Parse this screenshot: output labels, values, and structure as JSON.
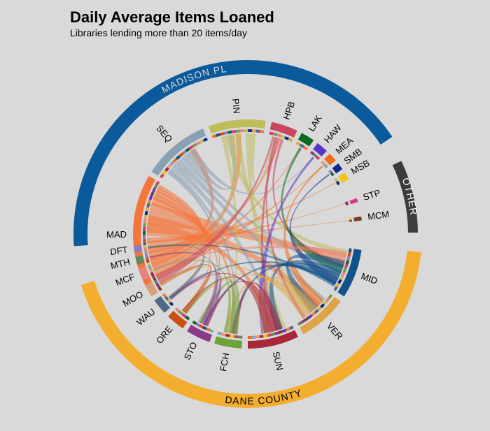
{
  "chart_data": {
    "type": "chord",
    "title": "Daily Average Items Loaned",
    "subtitle": "Libraries lending more than 20 items/day",
    "groups": [
      {
        "name": "MADISON PL",
        "color": "#0a5a9c",
        "text_color": "#d9d9d9",
        "nodes": [
          "MAD",
          "SEQ",
          "PIN",
          "HPB",
          "LAK",
          "HAW",
          "MEA",
          "SMB",
          "MSB"
        ]
      },
      {
        "name": "OTHER",
        "color": "#3c3c3c",
        "text_color": "#ffffff",
        "nodes": [
          "STP",
          "MCM"
        ]
      },
      {
        "name": "DANE COUNTY",
        "color": "#f4ae2f",
        "text_color": "#000000",
        "nodes": [
          "MID",
          "VER",
          "SUN",
          "FCH",
          "STO",
          "ORE",
          "WAU",
          "MOO",
          "MCF",
          "MTH",
          "DFT"
        ]
      }
    ],
    "nodes": [
      {
        "code": "MAD",
        "color": "#f4743b"
      },
      {
        "code": "SEQ",
        "color": "#8aa0b4"
      },
      {
        "code": "PIN",
        "color": "#bfbc5c"
      },
      {
        "code": "HPB",
        "color": "#c9445c"
      },
      {
        "code": "LAK",
        "color": "#0b6a1e"
      },
      {
        "code": "HAW",
        "color": "#5b35c7"
      },
      {
        "code": "MEA",
        "color": "#f06b14"
      },
      {
        "code": "SMB",
        "color": "#0b2a8c"
      },
      {
        "code": "MSB",
        "color": "#f4c21a"
      },
      {
        "code": "STP",
        "color": "#e0348c"
      },
      {
        "code": "MCM",
        "color": "#7a3b2e"
      },
      {
        "code": "MID",
        "color": "#10528a"
      },
      {
        "code": "VER",
        "color": "#dea548"
      },
      {
        "code": "SUN",
        "color": "#a8283a"
      },
      {
        "code": "FCH",
        "color": "#6ea23a"
      },
      {
        "code": "STO",
        "color": "#8a3a86"
      },
      {
        "code": "ORE",
        "color": "#c84e12"
      },
      {
        "code": "WAU",
        "color": "#4f6a82"
      },
      {
        "code": "MOO",
        "color": "#d8a078"
      },
      {
        "code": "MCF",
        "color": "#e6837d"
      },
      {
        "code": "MTH",
        "color": "#5e8a5c"
      },
      {
        "code": "DFT",
        "color": "#8f79b8"
      }
    ]
  }
}
